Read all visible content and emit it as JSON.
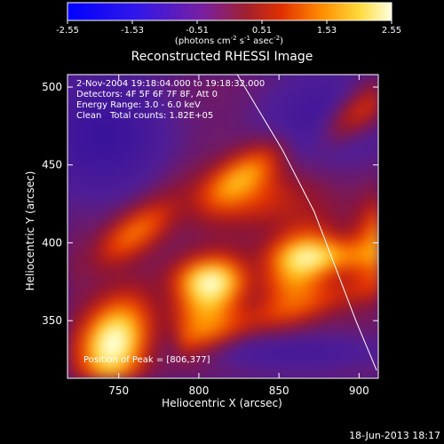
{
  "chart_data": {
    "type": "heatmap",
    "title": "Reconstructed RHESSI Image",
    "xlabel": "Heliocentric X (arcsec)",
    "ylabel": "Heliocentric Y (arcsec)",
    "xlim": [
      718,
      912
    ],
    "ylim": [
      313,
      508
    ],
    "x_ticks": [
      "750",
      "800",
      "850",
      "900"
    ],
    "y_ticks": [
      "350",
      "400",
      "450",
      "500"
    ],
    "colorbar": {
      "range": [
        -2.55,
        2.55
      ],
      "ticks": [
        "-2.55",
        "-1.53",
        "-0.51",
        "0.51",
        "1.53",
        "2.55"
      ],
      "unit_text": "(photons cm",
      "unit_sup1": "-2",
      "unit_mid": " s",
      "unit_sup2": "-1",
      "unit_end": " asec",
      "unit_sup3": "-2",
      "unit_close": ")"
    },
    "annotations": [
      "2-Nov-2004 19:18:04.000 to 19:18:32.000",
      "Detectors: 4F 5F 6F 7F 8F, Att 0",
      "Energy Range: 3.0 - 6.0 keV",
      "Clean",
      "Total counts: 1.82E+05"
    ],
    "peak_label": "Position of Peak = [806,377]",
    "peak": [
      806,
      377
    ],
    "limb_line": [
      [
        824,
        508
      ],
      [
        852,
        460
      ],
      [
        872,
        420
      ],
      [
        885,
        385
      ],
      [
        898,
        350
      ],
      [
        911,
        318
      ]
    ],
    "grid": false,
    "timestamp": "18-Jun-2013 18:17"
  }
}
